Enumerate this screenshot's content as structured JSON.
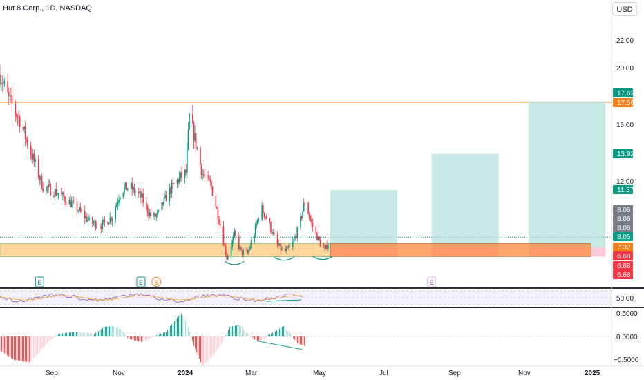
{
  "header": {
    "title": "Hut 8 Corp., 1D, NASDAQ",
    "currency_button": "USD"
  },
  "price_axis": {
    "labels": [
      "22.00",
      "20.00",
      "16.00",
      "12.00"
    ]
  },
  "price_badges": [
    {
      "text": "17.62",
      "color": "#089981"
    },
    {
      "text": "17.56",
      "color": "#f57f17"
    },
    {
      "text": "13.92",
      "color": "#089981"
    },
    {
      "text": "11.37",
      "color": "#089981"
    },
    {
      "text": "8.06",
      "color": "#787b86"
    },
    {
      "text": "8.06",
      "color": "#787b86"
    },
    {
      "text": "8.06",
      "color": "#787b86"
    },
    {
      "text": "8.05",
      "color": "#089981"
    },
    {
      "text": "7.32",
      "color": "#f57f17"
    },
    {
      "text": "6.68",
      "color": "#f23645"
    },
    {
      "text": "6.68",
      "color": "#f23645"
    },
    {
      "text": "6.68",
      "color": "#f23645"
    }
  ],
  "event_markers": [
    {
      "label": "E",
      "kind": "earnings"
    },
    {
      "label": "E",
      "kind": "earnings"
    },
    {
      "label": "$",
      "kind": "dividend"
    },
    {
      "label": "E",
      "kind": "earnings-future"
    }
  ],
  "rsi_axis": {
    "label": "50.00"
  },
  "macd_axis": {
    "labels": [
      "0.5000",
      "0.0000",
      "−0.5000"
    ]
  },
  "time_axis": {
    "labels": [
      "Sep",
      "Nov",
      "2024",
      "Mar",
      "May",
      "Jul",
      "Sep",
      "Nov",
      "2025"
    ]
  },
  "chart_data": {
    "type": "candlestick",
    "symbol": "Hut 8 Corp.",
    "interval": "1D",
    "exchange": "NASDAQ",
    "currency": "USD",
    "price_range": [
      5.5,
      24
    ],
    "close_path": [
      {
        "d": "2023-07-10",
        "c": 19.5
      },
      {
        "d": "2023-07-18",
        "c": 17.8
      },
      {
        "d": "2023-07-28",
        "c": 16.3
      },
      {
        "d": "2023-08-08",
        "c": 13.8
      },
      {
        "d": "2023-08-18",
        "c": 11.6
      },
      {
        "d": "2023-08-31",
        "c": 11.2
      },
      {
        "d": "2023-09-10",
        "c": 10.6
      },
      {
        "d": "2023-09-20",
        "c": 9.9
      },
      {
        "d": "2023-09-30",
        "c": 9.1
      },
      {
        "d": "2023-10-10",
        "c": 8.9
      },
      {
        "d": "2023-10-20",
        "c": 9.5
      },
      {
        "d": "2023-10-28",
        "c": 11.4
      },
      {
        "d": "2023-11-05",
        "c": 11.6
      },
      {
        "d": "2023-11-15",
        "c": 10.9
      },
      {
        "d": "2023-11-25",
        "c": 9.4
      },
      {
        "d": "2023-12-01",
        "c": 9.7
      },
      {
        "d": "2023-12-10",
        "c": 11.2
      },
      {
        "d": "2023-12-20",
        "c": 12.2
      },
      {
        "d": "2023-12-26",
        "c": 12.6
      },
      {
        "d": "2023-12-29",
        "c": 16.5
      },
      {
        "d": "2024-01-03",
        "c": 15.0
      },
      {
        "d": "2024-01-10",
        "c": 12.5
      },
      {
        "d": "2024-01-18",
        "c": 11.6
      },
      {
        "d": "2024-01-25",
        "c": 9.3
      },
      {
        "d": "2024-02-01",
        "c": 6.6
      },
      {
        "d": "2024-02-08",
        "c": 8.2
      },
      {
        "d": "2024-02-14",
        "c": 7.0
      },
      {
        "d": "2024-02-20",
        "c": 6.9
      },
      {
        "d": "2024-02-26",
        "c": 8.3
      },
      {
        "d": "2024-03-03",
        "c": 10.2
      },
      {
        "d": "2024-03-10",
        "c": 9.1
      },
      {
        "d": "2024-03-17",
        "c": 7.6
      },
      {
        "d": "2024-03-24",
        "c": 7.0
      },
      {
        "d": "2024-03-31",
        "c": 7.4
      },
      {
        "d": "2024-04-07",
        "c": 8.9
      },
      {
        "d": "2024-04-12",
        "c": 10.6
      },
      {
        "d": "2024-04-18",
        "c": 9.0
      },
      {
        "d": "2024-04-24",
        "c": 7.9
      },
      {
        "d": "2024-04-30",
        "c": 7.1
      },
      {
        "d": "2024-05-05",
        "c": 8.05
      }
    ],
    "horizontal_lines": [
      {
        "price": 17.56,
        "color": "#f57f17"
      },
      {
        "price": 8.05,
        "color": "#089981",
        "style": "dotted"
      }
    ],
    "support_zone": {
      "low": 6.68,
      "high": 7.62
    },
    "long_positions": [
      {
        "entry": 7.32,
        "stop": 6.68,
        "target": 11.37,
        "start": "2024-05-05",
        "end": "2024-07-05"
      },
      {
        "entry": 7.32,
        "stop": 6.68,
        "target": 13.92,
        "start": "2024-08-05",
        "end": "2024-10-05"
      },
      {
        "entry": 7.32,
        "stop": 6.68,
        "target": 17.62,
        "start": "2024-11-01",
        "end": "2025-01-10"
      }
    ],
    "rsi_midline": 50,
    "macd_range": [
      -0.6,
      0.65
    ]
  }
}
